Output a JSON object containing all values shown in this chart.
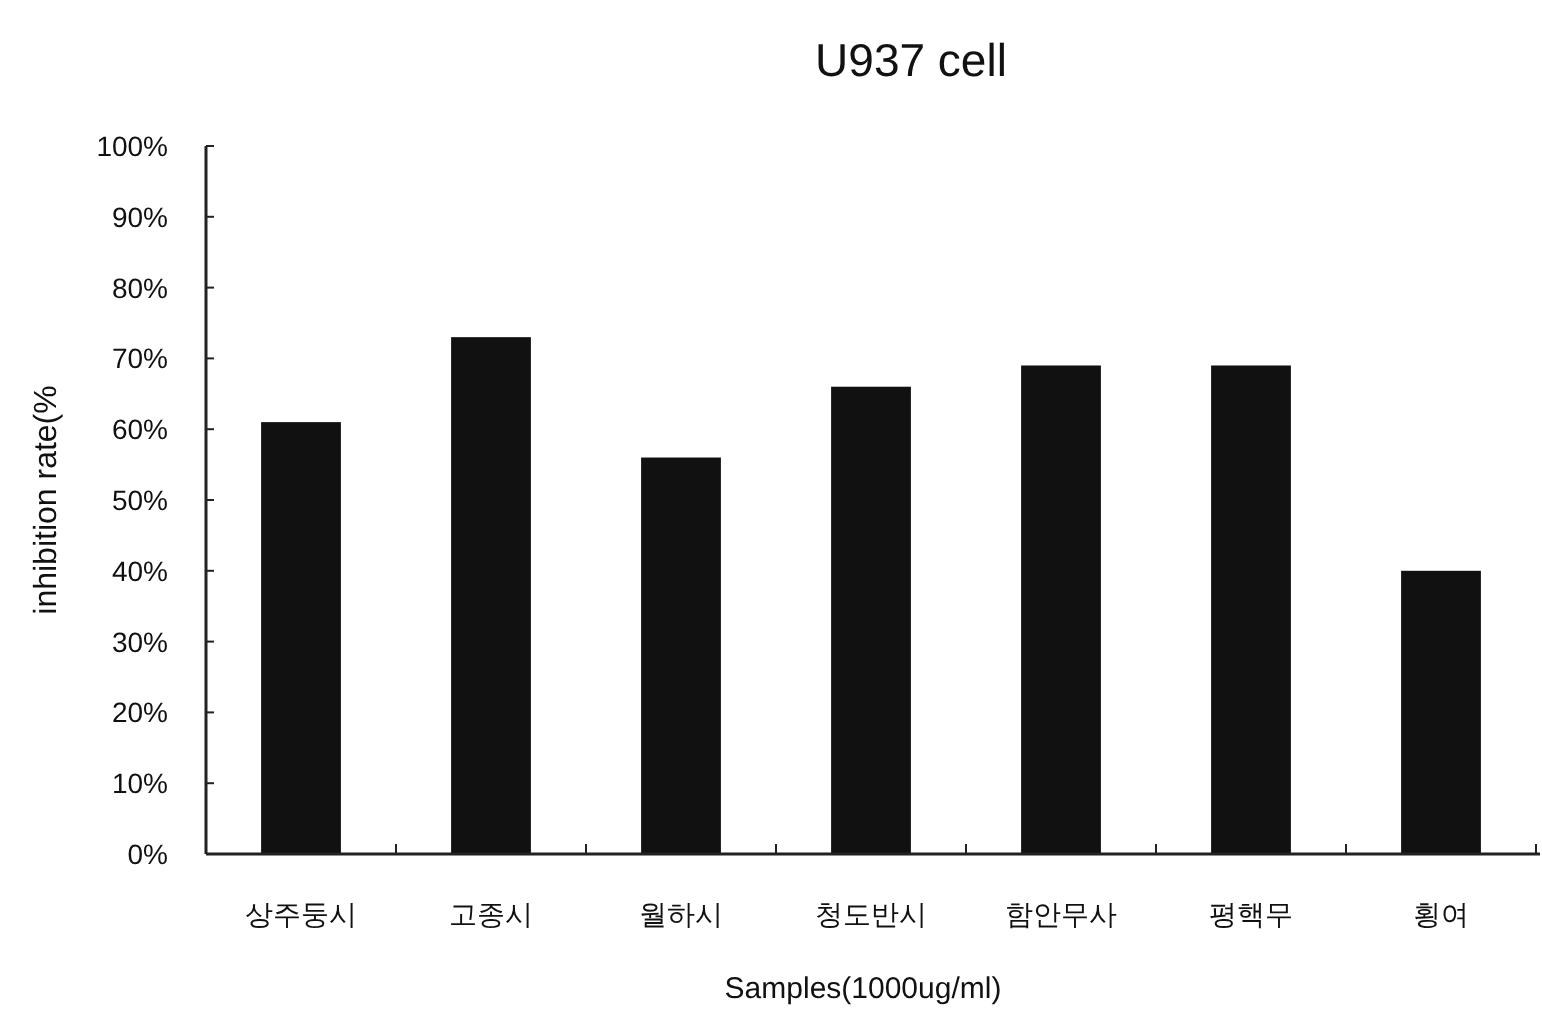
{
  "chart_data": {
    "type": "bar",
    "title": "U937 cell",
    "xlabel": "Samples(1000ug/ml)",
    "ylabel": "inhibition rate(%",
    "categories": [
      "상주둥시",
      "고종시",
      "월하시",
      "청도반시",
      "함안무사",
      "평핵무",
      "횡여"
    ],
    "values": [
      61,
      73,
      56,
      66,
      69,
      69,
      40
    ],
    "color": "#111111",
    "ylim": [
      0,
      100
    ],
    "yticks": [
      {
        "value": 0,
        "label": "0%"
      },
      {
        "value": 10,
        "label": "10%"
      },
      {
        "value": 20,
        "label": "20%"
      },
      {
        "value": 30,
        "label": "30%"
      },
      {
        "value": 40,
        "label": "40%"
      },
      {
        "value": 50,
        "label": "50%"
      },
      {
        "value": 60,
        "label": "60%"
      },
      {
        "value": 70,
        "label": "70%"
      },
      {
        "value": 80,
        "label": "80%"
      },
      {
        "value": 90,
        "label": "90%"
      },
      {
        "value": 100,
        "label": "100%"
      }
    ]
  }
}
